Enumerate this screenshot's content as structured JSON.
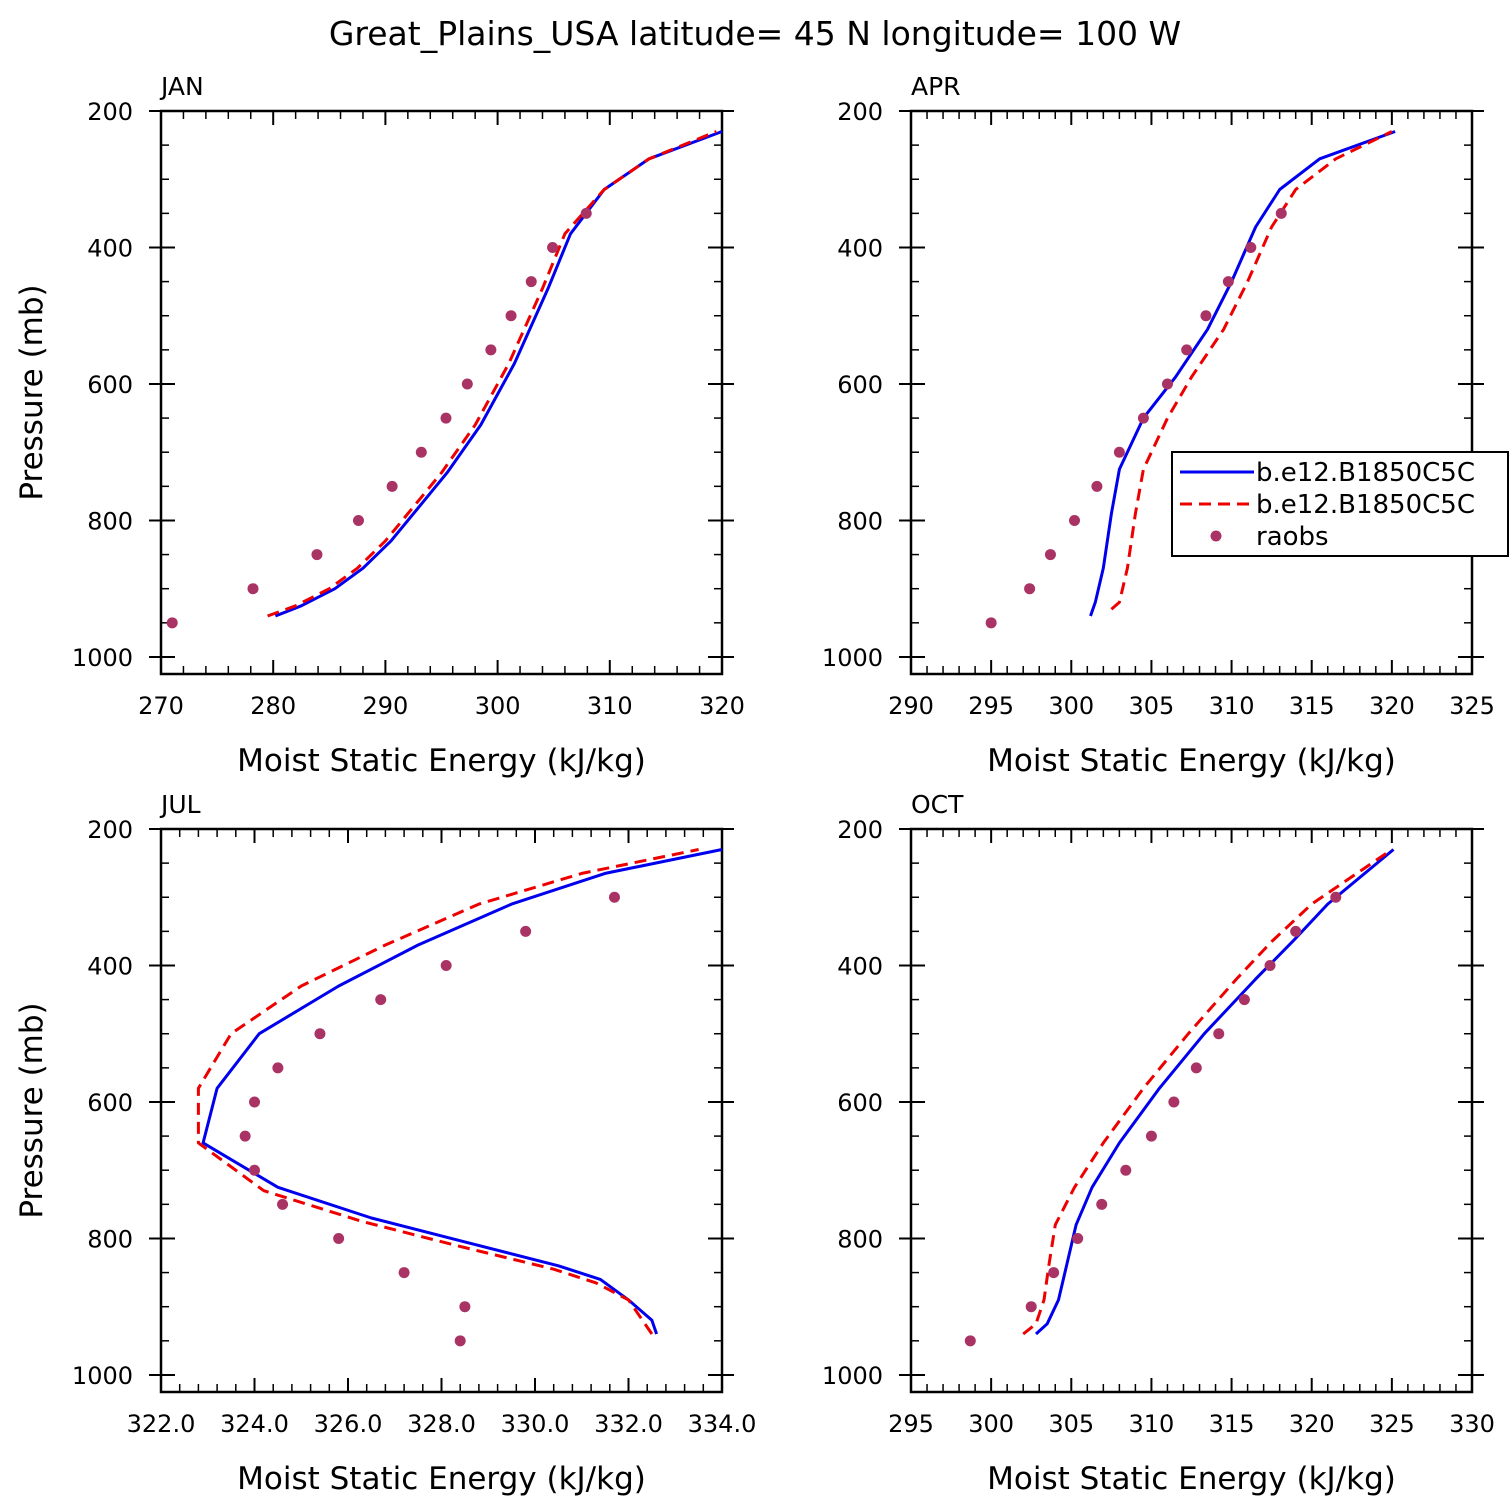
{
  "title": "Great_Plains_USA  latitude= 45 N longitude= 100 W",
  "colors": {
    "model1": "#0000ee",
    "model2": "#ee0000",
    "raobs": "#aa3366"
  },
  "legend": {
    "entries": [
      {
        "label": "b.e12.B1850C5C",
        "style": "solid"
      },
      {
        "label": "b.e12.B1850C5C",
        "style": "dashed"
      },
      {
        "label": "raobs",
        "style": "marker"
      }
    ]
  },
  "chart_data": [
    {
      "type": "line",
      "title": "JAN",
      "xlabel": "Moist Static Energy (kJ/kg)",
      "ylabel": "Pressure (mb)",
      "xlim": [
        270,
        320
      ],
      "ylim": [
        1000,
        200
      ],
      "xticks": [
        270,
        280,
        290,
        300,
        310,
        320
      ],
      "xtick_labels": [
        "270",
        "280",
        "290",
        "300",
        "310",
        "320"
      ],
      "yticks": [
        200,
        400,
        600,
        800,
        1000
      ],
      "ytick_labels": [
        "200",
        "400",
        "600",
        "800",
        "1000"
      ],
      "show_legend": false,
      "series": [
        {
          "name": "b.e12.B1850C5C",
          "style": "solid",
          "x": [
            280.2,
            282.5,
            285.5,
            288.0,
            290.5,
            293.0,
            295.5,
            298.5,
            301.5,
            304.5,
            306.5,
            309.5,
            313.5,
            320.0
          ],
          "y": [
            940,
            925,
            900,
            870,
            830,
            780,
            730,
            660,
            570,
            460,
            380,
            315,
            270,
            230
          ]
        },
        {
          "name": "b.e12.B1850C5C",
          "style": "dashed",
          "x": [
            279.5,
            282.0,
            285.0,
            287.5,
            290.0,
            292.5,
            295.0,
            298.0,
            301.0,
            304.0,
            306.0,
            309.5,
            313.5,
            319.5
          ],
          "y": [
            940,
            925,
            900,
            870,
            830,
            780,
            730,
            660,
            570,
            460,
            380,
            315,
            270,
            230
          ]
        },
        {
          "name": "raobs",
          "style": "marker",
          "x": [
            271.0,
            278.2,
            283.9,
            287.6,
            290.6,
            293.2,
            295.4,
            297.3,
            299.4,
            301.2,
            303.0,
            304.9,
            307.9
          ],
          "y": [
            950,
            900,
            850,
            800,
            750,
            700,
            650,
            600,
            550,
            500,
            450,
            400,
            350
          ]
        }
      ]
    },
    {
      "type": "line",
      "title": "APR",
      "xlabel": "Moist Static Energy (kJ/kg)",
      "ylabel": "",
      "xlim": [
        290,
        325
      ],
      "ylim": [
        1000,
        200
      ],
      "xticks": [
        290,
        295,
        300,
        305,
        310,
        315,
        320,
        325
      ],
      "xtick_labels": [
        "290",
        "295",
        "300",
        "305",
        "310",
        "315",
        "320",
        "325"
      ],
      "yticks": [
        200,
        400,
        600,
        800,
        1000
      ],
      "ytick_labels": [
        "200",
        "400",
        "600",
        "800",
        "1000"
      ],
      "show_legend": true,
      "series": [
        {
          "name": "b.e12.B1850C5C",
          "style": "solid",
          "x": [
            301.2,
            301.5,
            302.0,
            302.5,
            303.0,
            304.5,
            306.5,
            308.5,
            310.0,
            311.5,
            313.0,
            315.5,
            320.2
          ],
          "y": [
            940,
            920,
            870,
            790,
            725,
            650,
            590,
            520,
            450,
            370,
            315,
            270,
            230
          ]
        },
        {
          "name": "b.e12.B1850C5C",
          "style": "dashed",
          "x": [
            302.5,
            303.0,
            303.5,
            304.0,
            304.5,
            306.0,
            307.5,
            309.5,
            311.0,
            312.5,
            314.0,
            316.5,
            320.0
          ],
          "y": [
            930,
            920,
            870,
            790,
            725,
            650,
            590,
            520,
            450,
            370,
            315,
            270,
            230
          ]
        },
        {
          "name": "raobs",
          "style": "marker",
          "x": [
            295.0,
            297.4,
            298.7,
            300.2,
            301.6,
            303.0,
            304.5,
            306.0,
            307.2,
            308.4,
            309.8,
            311.2,
            313.1
          ],
          "y": [
            950,
            900,
            850,
            800,
            750,
            700,
            650,
            600,
            550,
            500,
            450,
            400,
            350
          ]
        }
      ]
    },
    {
      "type": "line",
      "title": "JUL",
      "xlabel": "Moist Static Energy (kJ/kg)",
      "ylabel": "Pressure (mb)",
      "xlim": [
        322.0,
        334.0
      ],
      "ylim": [
        1000,
        200
      ],
      "xticks": [
        322,
        324,
        326,
        328,
        330,
        332,
        334
      ],
      "xtick_labels": [
        "322.0",
        "324.0",
        "326.0",
        "328.0",
        "330.0",
        "332.0",
        "334.0"
      ],
      "yticks": [
        200,
        400,
        600,
        800,
        1000
      ],
      "ytick_labels": [
        "200",
        "400",
        "600",
        "800",
        "1000"
      ],
      "show_legend": false,
      "series": [
        {
          "name": "b.e12.B1850C5C",
          "style": "solid",
          "x": [
            332.6,
            332.5,
            332.0,
            331.4,
            330.5,
            328.5,
            326.5,
            324.5,
            322.9,
            323.2,
            324.1,
            325.8,
            327.5,
            329.5,
            331.5,
            334.0
          ],
          "y": [
            940,
            920,
            890,
            860,
            840,
            805,
            770,
            725,
            660,
            580,
            500,
            430,
            370,
            310,
            265,
            230
          ]
        },
        {
          "name": "b.e12.B1850C5C",
          "style": "dashed",
          "x": [
            332.5,
            332.3,
            332.0,
            331.3,
            330.4,
            328.3,
            326.3,
            324.2,
            322.8,
            322.8,
            323.5,
            325.0,
            326.8,
            328.8,
            331.0,
            333.5
          ],
          "y": [
            940,
            920,
            890,
            865,
            845,
            810,
            775,
            730,
            660,
            580,
            500,
            430,
            370,
            310,
            265,
            230
          ]
        },
        {
          "name": "raobs",
          "style": "marker",
          "x": [
            328.4,
            328.5,
            327.2,
            325.8,
            324.6,
            324.0,
            323.8,
            324.0,
            324.5,
            325.4,
            326.7,
            328.1,
            329.8,
            331.7
          ],
          "y": [
            950,
            900,
            850,
            800,
            750,
            700,
            650,
            600,
            550,
            500,
            450,
            400,
            350,
            300
          ]
        }
      ]
    },
    {
      "type": "line",
      "title": "OCT",
      "xlabel": "Moist Static Energy (kJ/kg)",
      "ylabel": "",
      "xlim": [
        295,
        330
      ],
      "ylim": [
        1000,
        200
      ],
      "xticks": [
        295,
        300,
        305,
        310,
        315,
        320,
        325,
        330
      ],
      "xtick_labels": [
        "295",
        "300",
        "305",
        "310",
        "315",
        "320",
        "325",
        "330"
      ],
      "yticks": [
        200,
        400,
        600,
        800,
        1000
      ],
      "ytick_labels": [
        "200",
        "400",
        "600",
        "800",
        "1000"
      ],
      "show_legend": false,
      "series": [
        {
          "name": "b.e12.B1850C5C",
          "style": "solid",
          "x": [
            302.8,
            303.5,
            304.2,
            304.7,
            305.3,
            306.3,
            308.0,
            310.5,
            313.3,
            316.5,
            318.8,
            321.0,
            325.1
          ],
          "y": [
            940,
            925,
            890,
            840,
            780,
            725,
            660,
            580,
            500,
            420,
            365,
            310,
            230
          ]
        },
        {
          "name": "b.e12.B1850C5C",
          "style": "dashed",
          "x": [
            302.0,
            302.8,
            303.3,
            303.6,
            304.0,
            305.2,
            307.0,
            309.5,
            312.3,
            315.3,
            317.5,
            320.0,
            325.0
          ],
          "y": [
            940,
            925,
            890,
            840,
            780,
            725,
            660,
            580,
            500,
            420,
            365,
            310,
            230
          ]
        },
        {
          "name": "raobs",
          "style": "marker",
          "x": [
            298.7,
            302.5,
            303.9,
            305.4,
            306.9,
            308.4,
            310.0,
            311.4,
            312.8,
            314.2,
            315.8,
            317.4,
            319.0,
            321.5
          ],
          "y": [
            950,
            900,
            850,
            800,
            750,
            700,
            650,
            600,
            550,
            500,
            450,
            400,
            350,
            300
          ]
        }
      ]
    }
  ]
}
